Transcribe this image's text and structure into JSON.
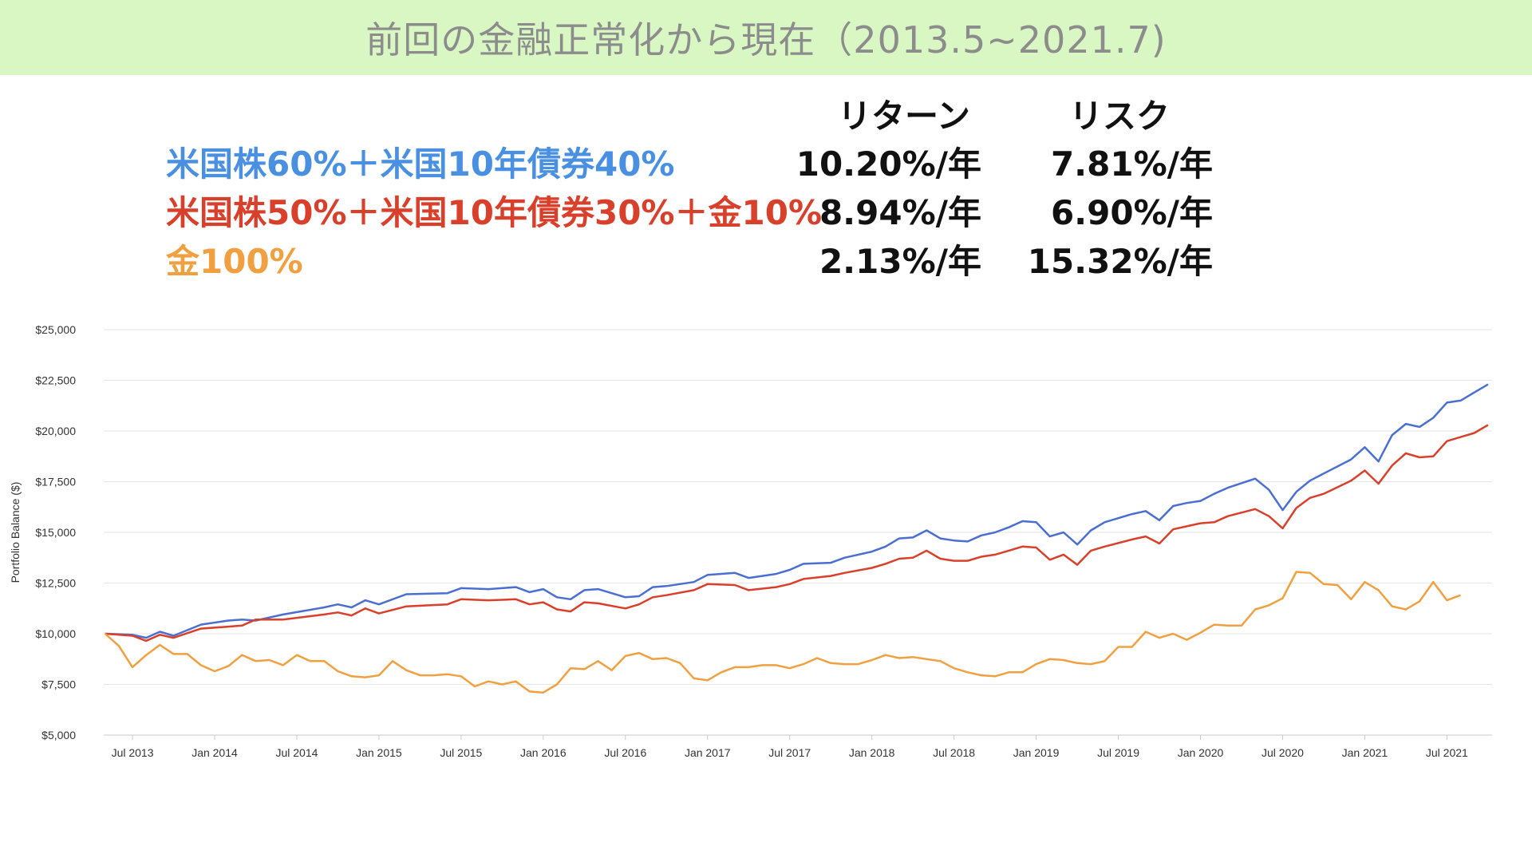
{
  "title": "前回の金融正常化から現在（2013.5~2021.7)",
  "headers": {
    "return": "リターン",
    "risk": "リスク"
  },
  "portfolios": [
    {
      "label": "米国株60%＋米国10年債券40%",
      "color": "#4a90e2",
      "return": "10.20%/年",
      "risk": "7.81%/年"
    },
    {
      "label": "米国株50%＋米国10年債券30%＋金10%",
      "color": "#d9402b",
      "return": "8.94%/年",
      "risk": "6.90%/年"
    },
    {
      "label": "金100%",
      "color": "#f0a040",
      "return": "2.13%/年",
      "risk": "15.32%/年"
    }
  ],
  "chart_data": {
    "type": "line",
    "ylabel": "Portfolio Balance ($)",
    "ylim": [
      5000,
      25000
    ],
    "yticks": [
      "$5,000",
      "$7,500",
      "$10,000",
      "$12,500",
      "$15,000",
      "$17,500",
      "$20,000",
      "$22,500",
      "$25,000"
    ],
    "ytick_values": [
      5000,
      7500,
      10000,
      12500,
      15000,
      17500,
      20000,
      22500,
      25000
    ],
    "x_start": "2013-05",
    "x_end": "2021-07",
    "xticks": [
      {
        "date": "2013-07",
        "label": "Jul 2013"
      },
      {
        "date": "2014-01",
        "label": "Jan 2014"
      },
      {
        "date": "2014-07",
        "label": "Jul 2014"
      },
      {
        "date": "2015-01",
        "label": "Jan 2015"
      },
      {
        "date": "2015-07",
        "label": "Jul 2015"
      },
      {
        "date": "2016-01",
        "label": "Jan 2016"
      },
      {
        "date": "2016-07",
        "label": "Jul 2016"
      },
      {
        "date": "2017-01",
        "label": "Jan 2017"
      },
      {
        "date": "2017-07",
        "label": "Jul 2017"
      },
      {
        "date": "2018-01",
        "label": "Jan 2018"
      },
      {
        "date": "2018-07",
        "label": "Jul 2018"
      },
      {
        "date": "2019-01",
        "label": "Jan 2019"
      },
      {
        "date": "2019-07",
        "label": "Jul 2019"
      },
      {
        "date": "2020-01",
        "label": "Jan 2020"
      },
      {
        "date": "2020-07",
        "label": "Jul 2020"
      },
      {
        "date": "2021-01",
        "label": "Jan 2021"
      },
      {
        "date": "2021-07",
        "label": "Jul 2021"
      }
    ],
    "grid": true,
    "series": [
      {
        "color": "#4a6fd1",
        "points": [
          [
            "2013-05",
            10000
          ],
          [
            "2013-07",
            9950
          ],
          [
            "2013-08",
            9800
          ],
          [
            "2013-09",
            10100
          ],
          [
            "2013-10",
            9900
          ],
          [
            "2013-12",
            10450
          ],
          [
            "2014-02",
            10650
          ],
          [
            "2014-03",
            10700
          ],
          [
            "2014-04",
            10650
          ],
          [
            "2014-06",
            10950
          ],
          [
            "2014-09",
            11300
          ],
          [
            "2014-10",
            11450
          ],
          [
            "2014-11",
            11300
          ],
          [
            "2014-12",
            11650
          ],
          [
            "2015-01",
            11450
          ],
          [
            "2015-03",
            11950
          ],
          [
            "2015-06",
            12000
          ],
          [
            "2015-07",
            12250
          ],
          [
            "2015-09",
            12200
          ],
          [
            "2015-11",
            12300
          ],
          [
            "2015-12",
            12050
          ],
          [
            "2016-01",
            12200
          ],
          [
            "2016-02",
            11800
          ],
          [
            "2016-03",
            11700
          ],
          [
            "2016-04",
            12150
          ],
          [
            "2016-05",
            12200
          ],
          [
            "2016-07",
            11800
          ],
          [
            "2016-08",
            11850
          ],
          [
            "2016-09",
            12300
          ],
          [
            "2016-10",
            12350
          ],
          [
            "2016-12",
            12550
          ],
          [
            "2017-01",
            12900
          ],
          [
            "2017-03",
            13000
          ],
          [
            "2017-04",
            12750
          ],
          [
            "2017-06",
            12950
          ],
          [
            "2017-07",
            13150
          ],
          [
            "2017-08",
            13450
          ],
          [
            "2017-10",
            13500
          ],
          [
            "2017-11",
            13750
          ],
          [
            "2018-01",
            14050
          ],
          [
            "2018-02",
            14300
          ],
          [
            "2018-03",
            14700
          ],
          [
            "2018-04",
            14750
          ],
          [
            "2018-05",
            15100
          ],
          [
            "2018-06",
            14700
          ],
          [
            "2018-07",
            14600
          ],
          [
            "2018-08",
            14550
          ],
          [
            "2018-09",
            14850
          ],
          [
            "2018-10",
            15000
          ],
          [
            "2018-11",
            15250
          ],
          [
            "2018-12",
            15550
          ],
          [
            "2019-01",
            15500
          ],
          [
            "2019-02",
            14800
          ],
          [
            "2019-03",
            15000
          ],
          [
            "2019-04",
            14400
          ],
          [
            "2019-05",
            15100
          ],
          [
            "2019-06",
            15500
          ],
          [
            "2019-08",
            15900
          ],
          [
            "2019-09",
            16050
          ],
          [
            "2019-10",
            15600
          ],
          [
            "2019-11",
            16300
          ],
          [
            "2019-12",
            16450
          ],
          [
            "2020-01",
            16550
          ],
          [
            "2020-02",
            16900
          ],
          [
            "2020-03",
            17200
          ],
          [
            "2020-05",
            17650
          ],
          [
            "2020-06",
            17100
          ],
          [
            "2020-07",
            16100
          ],
          [
            "2020-08",
            17000
          ],
          [
            "2020-09",
            17550
          ],
          [
            "2020-10",
            17900
          ],
          [
            "2020-12",
            18600
          ],
          [
            "2021-01",
            19200
          ],
          [
            "2021-02",
            18500
          ],
          [
            "2021-03",
            19800
          ],
          [
            "2021-04",
            20350
          ],
          [
            "2021-05",
            20200
          ],
          [
            "2021-06",
            20650
          ],
          [
            "2021-07",
            21400
          ],
          [
            "2021-08",
            21500
          ],
          [
            "2021-09",
            21900
          ],
          [
            "2021-10",
            22300
          ]
        ]
      },
      {
        "color": "#d9402b",
        "points": [
          [
            "2013-05",
            10000
          ],
          [
            "2013-07",
            9900
          ],
          [
            "2013-08",
            9650
          ],
          [
            "2013-09",
            9950
          ],
          [
            "2013-10",
            9800
          ],
          [
            "2013-12",
            10250
          ],
          [
            "2014-02",
            10350
          ],
          [
            "2014-03",
            10400
          ],
          [
            "2014-04",
            10700
          ],
          [
            "2014-06",
            10700
          ],
          [
            "2014-09",
            10950
          ],
          [
            "2014-10",
            11050
          ],
          [
            "2014-11",
            10900
          ],
          [
            "2014-12",
            11250
          ],
          [
            "2015-01",
            11000
          ],
          [
            "2015-03",
            11350
          ],
          [
            "2015-06",
            11450
          ],
          [
            "2015-07",
            11700
          ],
          [
            "2015-09",
            11650
          ],
          [
            "2015-11",
            11700
          ],
          [
            "2015-12",
            11450
          ],
          [
            "2016-01",
            11550
          ],
          [
            "2016-02",
            11200
          ],
          [
            "2016-03",
            11100
          ],
          [
            "2016-04",
            11550
          ],
          [
            "2016-05",
            11500
          ],
          [
            "2016-07",
            11250
          ],
          [
            "2016-08",
            11450
          ],
          [
            "2016-09",
            11800
          ],
          [
            "2016-10",
            11900
          ],
          [
            "2016-12",
            12150
          ],
          [
            "2017-01",
            12450
          ],
          [
            "2017-03",
            12400
          ],
          [
            "2017-04",
            12150
          ],
          [
            "2017-06",
            12300
          ],
          [
            "2017-07",
            12450
          ],
          [
            "2017-08",
            12700
          ],
          [
            "2017-10",
            12850
          ],
          [
            "2017-11",
            13000
          ],
          [
            "2018-01",
            13250
          ],
          [
            "2018-02",
            13450
          ],
          [
            "2018-03",
            13700
          ],
          [
            "2018-04",
            13750
          ],
          [
            "2018-05",
            14100
          ],
          [
            "2018-06",
            13700
          ],
          [
            "2018-07",
            13600
          ],
          [
            "2018-08",
            13600
          ],
          [
            "2018-09",
            13800
          ],
          [
            "2018-10",
            13900
          ],
          [
            "2018-11",
            14100
          ],
          [
            "2018-12",
            14300
          ],
          [
            "2019-01",
            14250
          ],
          [
            "2019-02",
            13650
          ],
          [
            "2019-03",
            13900
          ],
          [
            "2019-04",
            13400
          ],
          [
            "2019-05",
            14100
          ],
          [
            "2019-06",
            14300
          ],
          [
            "2019-08",
            14650
          ],
          [
            "2019-09",
            14800
          ],
          [
            "2019-10",
            14450
          ],
          [
            "2019-11",
            15150
          ],
          [
            "2019-12",
            15300
          ],
          [
            "2020-01",
            15450
          ],
          [
            "2020-02",
            15500
          ],
          [
            "2020-03",
            15800
          ],
          [
            "2020-05",
            16150
          ],
          [
            "2020-06",
            15800
          ],
          [
            "2020-07",
            15200
          ],
          [
            "2020-08",
            16200
          ],
          [
            "2020-09",
            16700
          ],
          [
            "2020-10",
            16900
          ],
          [
            "2020-12",
            17550
          ],
          [
            "2021-01",
            18050
          ],
          [
            "2021-02",
            17400
          ],
          [
            "2021-03",
            18300
          ],
          [
            "2021-04",
            18900
          ],
          [
            "2021-05",
            18700
          ],
          [
            "2021-06",
            18750
          ],
          [
            "2021-07",
            19500
          ],
          [
            "2021-08",
            19700
          ],
          [
            "2021-09",
            19900
          ],
          [
            "2021-10",
            20300
          ]
        ]
      },
      {
        "color": "#f0a040",
        "points": [
          [
            "2013-05",
            10000
          ],
          [
            "2013-06",
            9400
          ],
          [
            "2013-07",
            8350
          ],
          [
            "2013-08",
            8950
          ],
          [
            "2013-09",
            9450
          ],
          [
            "2013-10",
            9000
          ],
          [
            "2013-11",
            9000
          ],
          [
            "2013-12",
            8450
          ],
          [
            "2014-01",
            8150
          ],
          [
            "2014-02",
            8400
          ],
          [
            "2014-03",
            8950
          ],
          [
            "2014-04",
            8650
          ],
          [
            "2014-05",
            8700
          ],
          [
            "2014-06",
            8450
          ],
          [
            "2014-07",
            8950
          ],
          [
            "2014-08",
            8650
          ],
          [
            "2014-09",
            8650
          ],
          [
            "2014-10",
            8150
          ],
          [
            "2014-11",
            7900
          ],
          [
            "2014-12",
            7850
          ],
          [
            "2015-01",
            7950
          ],
          [
            "2015-02",
            8650
          ],
          [
            "2015-03",
            8200
          ],
          [
            "2015-04",
            7950
          ],
          [
            "2015-05",
            7950
          ],
          [
            "2015-06",
            8000
          ],
          [
            "2015-07",
            7900
          ],
          [
            "2015-08",
            7400
          ],
          [
            "2015-09",
            7650
          ],
          [
            "2015-10",
            7500
          ],
          [
            "2015-11",
            7650
          ],
          [
            "2015-12",
            7150
          ],
          [
            "2016-01",
            7100
          ],
          [
            "2016-02",
            7500
          ],
          [
            "2016-03",
            8300
          ],
          [
            "2016-04",
            8250
          ],
          [
            "2016-05",
            8650
          ],
          [
            "2016-06",
            8200
          ],
          [
            "2016-07",
            8900
          ],
          [
            "2016-08",
            9050
          ],
          [
            "2016-09",
            8750
          ],
          [
            "2016-10",
            8800
          ],
          [
            "2016-11",
            8550
          ],
          [
            "2016-12",
            7800
          ],
          [
            "2017-01",
            7700
          ],
          [
            "2017-02",
            8100
          ],
          [
            "2017-03",
            8350
          ],
          [
            "2017-04",
            8350
          ],
          [
            "2017-05",
            8450
          ],
          [
            "2017-06",
            8450
          ],
          [
            "2017-07",
            8300
          ],
          [
            "2017-08",
            8500
          ],
          [
            "2017-09",
            8800
          ],
          [
            "2017-10",
            8550
          ],
          [
            "2017-11",
            8500
          ],
          [
            "2017-12",
            8500
          ],
          [
            "2018-01",
            8700
          ],
          [
            "2018-02",
            8950
          ],
          [
            "2018-03",
            8800
          ],
          [
            "2018-04",
            8850
          ],
          [
            "2018-05",
            8750
          ],
          [
            "2018-06",
            8650
          ],
          [
            "2018-07",
            8300
          ],
          [
            "2018-08",
            8100
          ],
          [
            "2018-09",
            7950
          ],
          [
            "2018-10",
            7900
          ],
          [
            "2018-11",
            8100
          ],
          [
            "2018-12",
            8100
          ],
          [
            "2019-01",
            8500
          ],
          [
            "2019-02",
            8750
          ],
          [
            "2019-03",
            8700
          ],
          [
            "2019-04",
            8550
          ],
          [
            "2019-05",
            8500
          ],
          [
            "2019-06",
            8650
          ],
          [
            "2019-07",
            9350
          ],
          [
            "2019-08",
            9350
          ],
          [
            "2019-09",
            10100
          ],
          [
            "2019-10",
            9800
          ],
          [
            "2019-11",
            10000
          ],
          [
            "2019-12",
            9700
          ],
          [
            "2020-01",
            10050
          ],
          [
            "2020-02",
            10450
          ],
          [
            "2020-03",
            10400
          ],
          [
            "2020-04",
            10400
          ],
          [
            "2020-05",
            11200
          ],
          [
            "2020-06",
            11400
          ],
          [
            "2020-07",
            11750
          ],
          [
            "2020-08",
            13050
          ],
          [
            "2020-09",
            13000
          ],
          [
            "2020-10",
            12450
          ],
          [
            "2020-11",
            12400
          ],
          [
            "2020-12",
            11700
          ],
          [
            "2021-01",
            12550
          ],
          [
            "2021-02",
            12150
          ],
          [
            "2021-03",
            11350
          ],
          [
            "2021-04",
            11200
          ],
          [
            "2021-05",
            11600
          ],
          [
            "2021-06",
            12550
          ],
          [
            "2021-07",
            11650
          ],
          [
            "2021-08",
            11900
          ]
        ]
      }
    ]
  }
}
